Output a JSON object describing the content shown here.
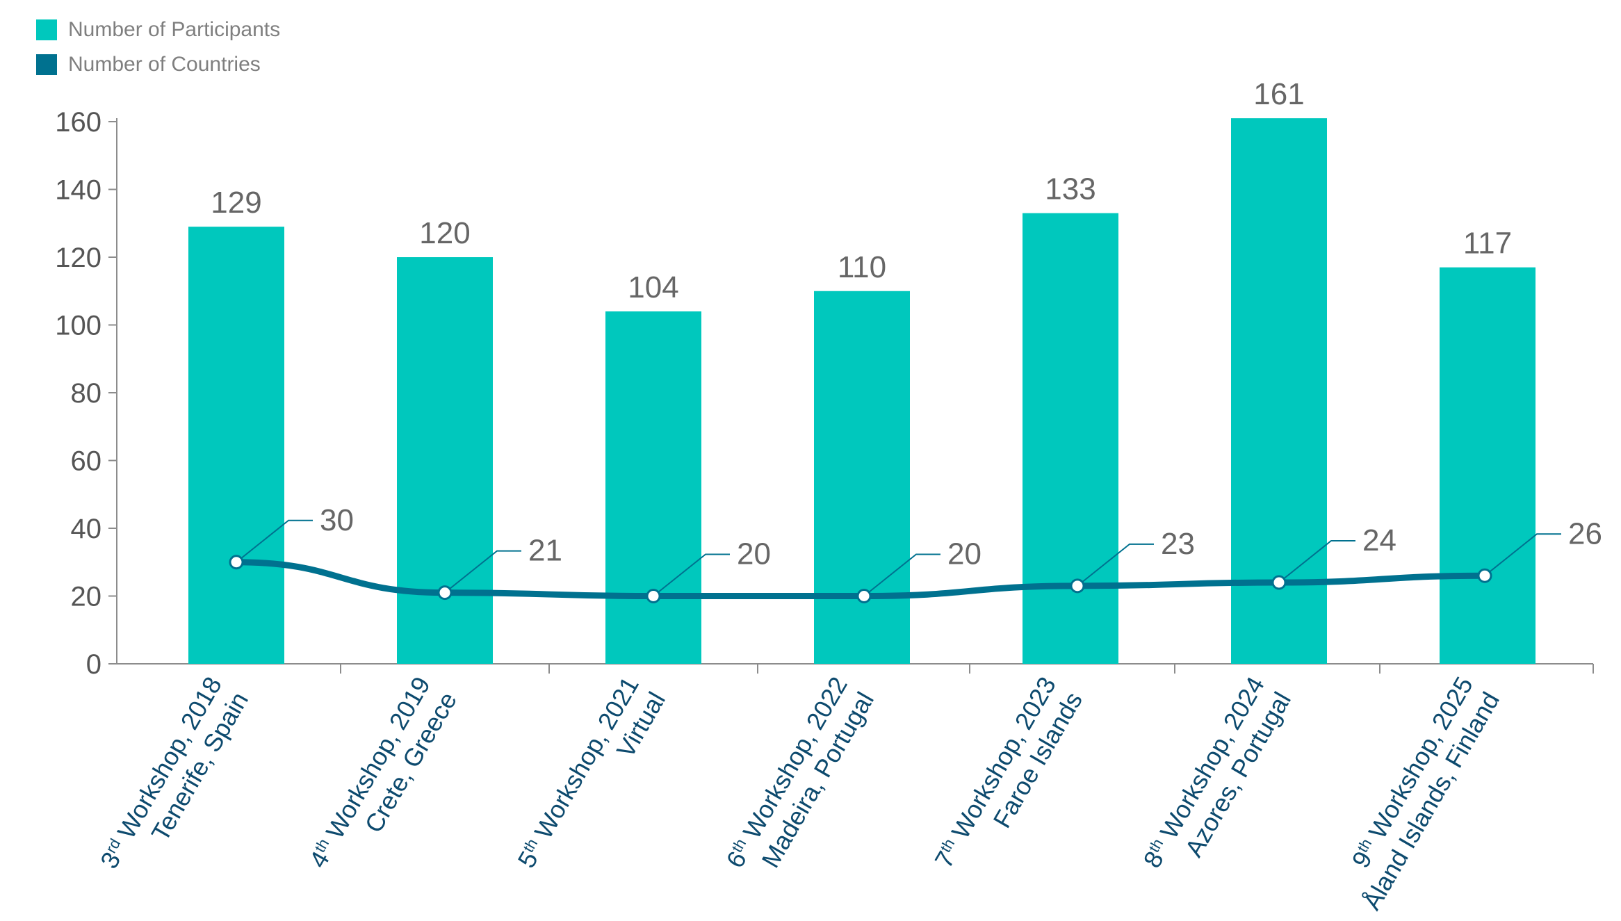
{
  "legend": {
    "participants_label": "Number of Participants",
    "countries_label": "Number of Countries"
  },
  "colors": {
    "bar": "#00c8bd",
    "line": "#00718f",
    "axis": "#8c8c8c",
    "tick_text": "#555555",
    "category_text": "#0d4a6e"
  },
  "chart_data": {
    "type": "bar",
    "ylim": [
      0,
      160
    ],
    "yticks": [
      0,
      20,
      40,
      60,
      80,
      100,
      120,
      140,
      160
    ],
    "grid": false,
    "legend_position": "top-left",
    "categories": [
      {
        "ordinal": "3",
        "suffix": "rd",
        "line1": "Workshop, 2018",
        "line2": "Tenerife, Spain"
      },
      {
        "ordinal": "4",
        "suffix": "th",
        "line1": "Workshop, 2019",
        "line2": "Crete, Greece"
      },
      {
        "ordinal": "5",
        "suffix": "th",
        "line1": "Workshop, 2021",
        "line2": "Virtual"
      },
      {
        "ordinal": "6",
        "suffix": "th",
        "line1": "Workshop, 2022",
        "line2": "Madeira, Portugal"
      },
      {
        "ordinal": "7",
        "suffix": "th",
        "line1": "Workshop, 2023",
        "line2": "Faroe Islands"
      },
      {
        "ordinal": "8",
        "suffix": "th",
        "line1": "Workshop, 2024",
        "line2": "Azores, Portugal"
      },
      {
        "ordinal": "9",
        "suffix": "th",
        "line1": "Workshop, 2025",
        "line2": "Åland Islands, Finland"
      }
    ],
    "series": [
      {
        "name": "Number of Participants",
        "type": "bar",
        "values": [
          129,
          120,
          104,
          110,
          133,
          161,
          117
        ]
      },
      {
        "name": "Number of Countries",
        "type": "line",
        "values": [
          30,
          21,
          20,
          20,
          23,
          24,
          26
        ]
      }
    ]
  }
}
